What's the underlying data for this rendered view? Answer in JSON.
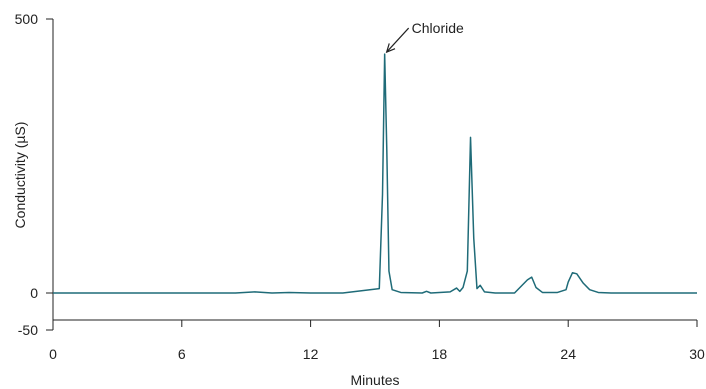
{
  "chart_data": {
    "type": "line",
    "title": "",
    "xlabel": "Minutes",
    "ylabel": "Conductivity (µS)",
    "xlim": [
      0,
      30
    ],
    "ylim": [
      -50,
      500
    ],
    "x_ticks": [
      0,
      6,
      12,
      18,
      24,
      30
    ],
    "x_tick_labels": [
      "0",
      "6",
      "12",
      "18",
      "24",
      "30"
    ],
    "y_ticks": [
      -50,
      0,
      500
    ],
    "y_tick_labels": [
      "-50",
      "0",
      "500"
    ],
    "grid": false,
    "legend": "none",
    "colors": {
      "series": "#1f6b78",
      "axis": "#222222"
    },
    "series": [
      {
        "x": [
          0,
          8.5,
          9.4,
          10.2,
          11.0,
          12.0,
          13.5,
          15.2,
          15.35,
          15.45,
          15.55,
          15.65,
          15.8,
          16.2,
          17.2,
          17.4,
          17.6,
          18.5,
          18.8,
          18.95,
          19.1,
          19.3,
          19.45,
          19.6,
          19.75,
          19.9,
          20.1,
          20.6,
          21.5,
          22.1,
          22.3,
          22.5,
          22.8,
          23.5,
          23.9,
          24.0,
          24.2,
          24.4,
          24.7,
          25.0,
          25.4,
          26.0,
          30.0
        ],
        "y": [
          0,
          0,
          2,
          0,
          1,
          0,
          0,
          8,
          180,
          436,
          260,
          40,
          6,
          1,
          0,
          3,
          0,
          2,
          9,
          3,
          10,
          40,
          284,
          100,
          8,
          14,
          2,
          0,
          0,
          24,
          29,
          10,
          1,
          1,
          6,
          20,
          37,
          35,
          18,
          6,
          1,
          0,
          0
        ]
      }
    ],
    "annotations": [
      {
        "text": "Chloride",
        "x": 15.45,
        "y": 436
      }
    ]
  }
}
